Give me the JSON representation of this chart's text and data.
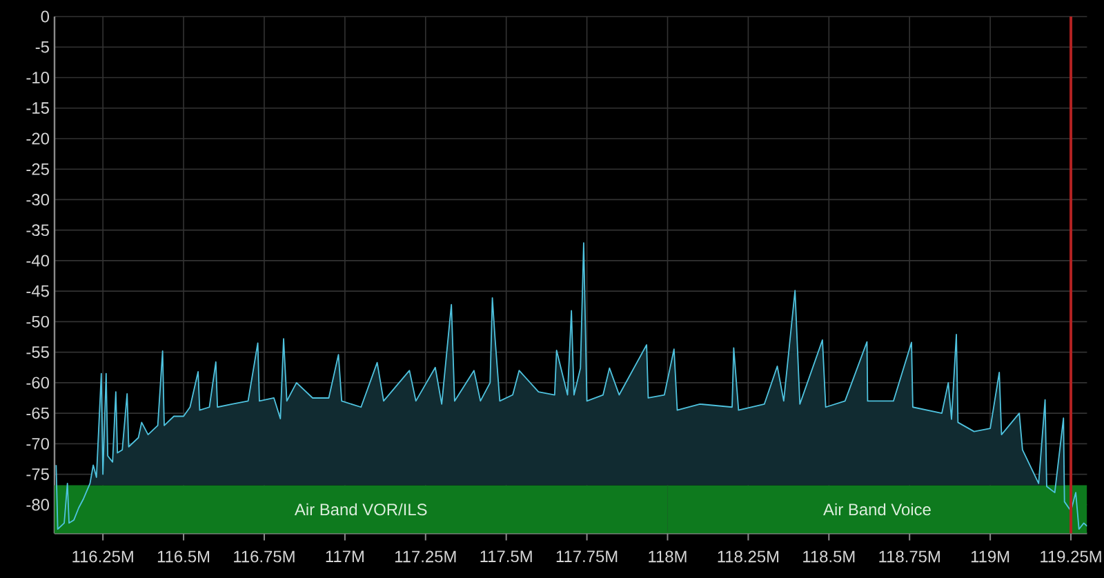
{
  "chart_data": {
    "type": "area",
    "xlim": [
      116.1,
      119.3
    ],
    "ylim": [
      -84.7,
      0
    ],
    "xticks": [
      {
        "value": 116.25,
        "label": "116.25M"
      },
      {
        "value": 116.5,
        "label": "116.5M"
      },
      {
        "value": 116.75,
        "label": "116.75M"
      },
      {
        "value": 117,
        "label": "117M"
      },
      {
        "value": 117.25,
        "label": "117.25M"
      },
      {
        "value": 117.5,
        "label": "117.5M"
      },
      {
        "value": 117.75,
        "label": "117.75M"
      },
      {
        "value": 118,
        "label": "118M"
      },
      {
        "value": 118.25,
        "label": "118.25M"
      },
      {
        "value": 118.5,
        "label": "118.5M"
      },
      {
        "value": 118.75,
        "label": "118.75M"
      },
      {
        "value": 119,
        "label": "119M"
      },
      {
        "value": 119.25,
        "label": "119.25M"
      }
    ],
    "yticks": [
      0,
      -5,
      -10,
      -15,
      -20,
      -25,
      -30,
      -35,
      -40,
      -45,
      -50,
      -55,
      -60,
      -65,
      -70,
      -75,
      -80
    ],
    "grid": true,
    "series": [
      {
        "color": "#4fc3df",
        "x": [
          116.105,
          116.11,
          116.13,
          116.14,
          116.145,
          116.16,
          116.175,
          116.19,
          116.21,
          116.22,
          116.23,
          116.245,
          116.25,
          116.26,
          116.265,
          116.28,
          116.29,
          116.295,
          116.31,
          116.325,
          116.33,
          116.36,
          116.37,
          116.39,
          116.42,
          116.435,
          116.44,
          116.47,
          116.5,
          116.52,
          116.545,
          116.55,
          116.58,
          116.6,
          116.605,
          116.65,
          116.7,
          116.73,
          116.735,
          116.78,
          116.8,
          116.81,
          116.82,
          116.85,
          116.9,
          116.95,
          116.98,
          116.99,
          117.05,
          117.1,
          117.12,
          117.2,
          117.22,
          117.28,
          117.3,
          117.33,
          117.34,
          117.4,
          117.42,
          117.45,
          117.457,
          117.465,
          117.48,
          117.52,
          117.54,
          117.6,
          117.65,
          117.656,
          117.69,
          117.702,
          117.71,
          117.73,
          117.74,
          117.75,
          117.8,
          117.82,
          117.85,
          117.935,
          117.94,
          117.99,
          118.02,
          118.03,
          118.1,
          118.2,
          118.205,
          118.22,
          118.3,
          118.34,
          118.36,
          118.395,
          118.41,
          118.48,
          118.49,
          118.55,
          118.618,
          118.62,
          118.7,
          118.756,
          118.76,
          118.85,
          118.87,
          118.88,
          118.895,
          118.9,
          118.95,
          119.0,
          119.028,
          119.035,
          119.09,
          119.1,
          119.15,
          119.17,
          119.175,
          119.2,
          119.227,
          119.23,
          119.25,
          119.265,
          119.275,
          119.29,
          119.3
        ],
        "values": [
          -73.5,
          -84,
          -83,
          -76.5,
          -83,
          -82.5,
          -80.5,
          -79,
          -76.5,
          -73.5,
          -75.5,
          -58.5,
          -75,
          -58.5,
          -72,
          -73,
          -61.5,
          -71.5,
          -71,
          -61.8,
          -70.5,
          -69,
          -66.5,
          -68.5,
          -67,
          -54.8,
          -67,
          -65.5,
          -65.5,
          -64,
          -58.2,
          -64.5,
          -64,
          -56.6,
          -64,
          -63.5,
          -63,
          -53.5,
          -63,
          -62.5,
          -65.9,
          -52.8,
          -63,
          -60,
          -62.5,
          -62.5,
          -55.4,
          -63,
          -64,
          -56.7,
          -63,
          -58,
          -63,
          -57.5,
          -63.5,
          -47.2,
          -63,
          -58,
          -63,
          -60,
          -46.1,
          -52.5,
          -63,
          -62,
          -58,
          -61.5,
          -62,
          -54.7,
          -62,
          -48.2,
          -62,
          -57.6,
          -37.1,
          -63,
          -62,
          -57.6,
          -62,
          -53.8,
          -62.5,
          -62,
          -54.5,
          -64.5,
          -63.5,
          -64,
          -54.3,
          -64.5,
          -63.5,
          -57.3,
          -63,
          -44.9,
          -63.5,
          -53,
          -64,
          -63,
          -53.3,
          -63,
          -63,
          -53.4,
          -64,
          -65,
          -60,
          -66,
          -52.1,
          -66.5,
          -68,
          -67.5,
          -58.3,
          -68.5,
          -65,
          -71,
          -76.5,
          -62.8,
          -77,
          -78,
          -65.8,
          -79.5,
          -81,
          -78,
          -84,
          -83,
          -83.5
        ]
      }
    ],
    "bands": [
      {
        "axis": "x",
        "from": 116.1,
        "to": 118,
        "label": "Air Band VOR/ILS",
        "color": "#0e7a1e"
      },
      {
        "axis": "x",
        "from": 118,
        "to": 119.3,
        "label": "Air Band Voice",
        "color": "#0e7a1e"
      }
    ],
    "ref_lines": [
      {
        "axis": "x",
        "value": 119.25,
        "color": "#b22222"
      }
    ]
  }
}
